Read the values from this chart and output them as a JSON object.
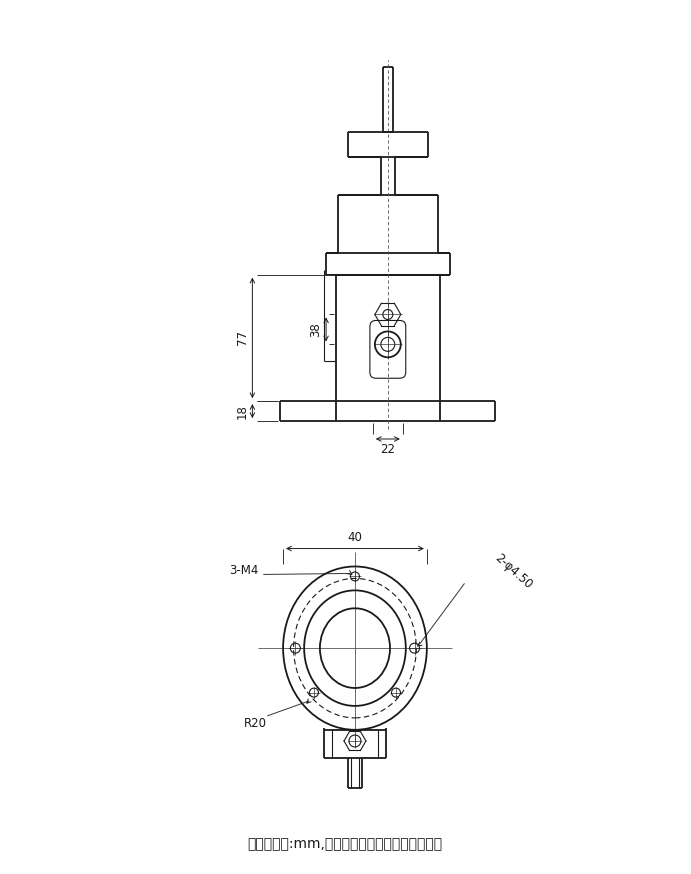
{
  "bg_color": "#ffffff",
  "line_color": "#1a1a1a",
  "figsize": [
    6.91,
    8.74
  ],
  "dpi": 100,
  "note_text": "（注：单位:mm,纯手工测量，存在一定误差。）",
  "dim_77": "77",
  "dim_38": "38",
  "dim_18": "18",
  "dim_22": "22",
  "dim_40": "40",
  "dim_R20": "R20",
  "dim_3M4": "3-M4",
  "dim_2phi450": "2-φ4.50",
  "font_size_dims": 8.5,
  "font_size_note": 10
}
